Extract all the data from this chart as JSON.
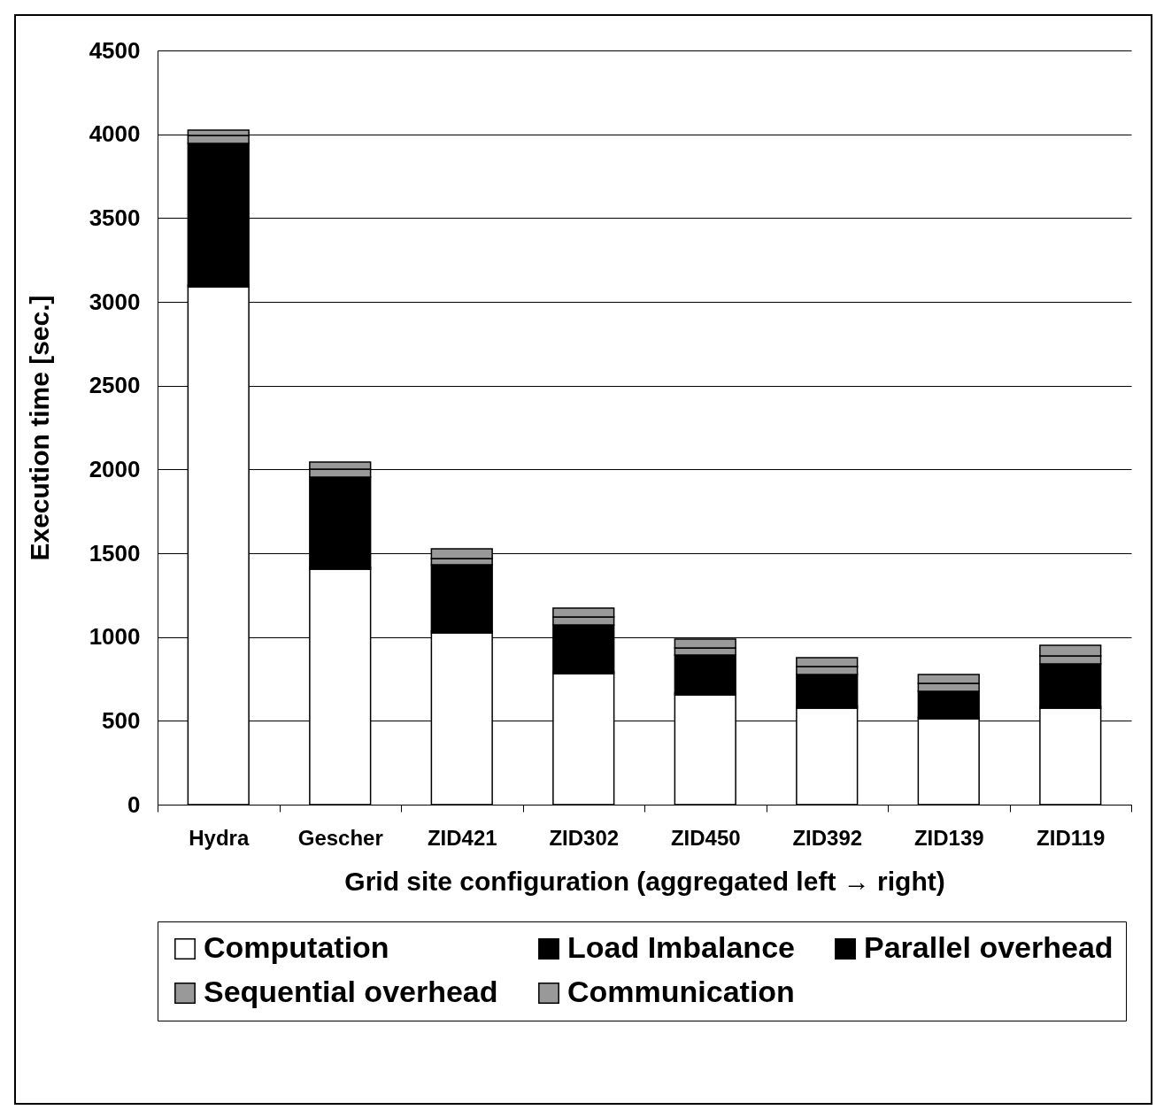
{
  "chart_data": {
    "type": "bar",
    "stacked": true,
    "xlabel": "Grid site configuration (aggregated left → right)",
    "ylabel": "Execution time [sec.]",
    "categories": [
      "Hydra",
      "Gescher",
      "ZID421",
      "ZID302",
      "ZID450",
      "ZID392",
      "ZID139",
      "ZID119"
    ],
    "series": [
      {
        "name": "Computation",
        "color": "#ffffff",
        "values": [
          3090,
          1405,
          1025,
          782,
          655,
          576,
          512,
          576
        ]
      },
      {
        "name": "Load Imbalance",
        "color": "#000000",
        "values": [
          10,
          10,
          10,
          10,
          10,
          10,
          10,
          10
        ]
      },
      {
        "name": "Parallel overhead",
        "color": "#000000",
        "values": [
          845,
          539,
          396,
          280,
          228,
          190,
          154,
          254
        ]
      },
      {
        "name": "Sequential overhead",
        "color": "#999999",
        "values": [
          48,
          48,
          37,
          48,
          42,
          48,
          48,
          47
        ]
      },
      {
        "name": "Communication",
        "color": "#999999",
        "values": [
          32,
          42,
          58,
          53,
          53,
          53,
          52,
          64
        ]
      }
    ],
    "ylim": [
      0,
      4500
    ],
    "yticks": [
      0,
      500,
      1000,
      1500,
      2000,
      2500,
      3000,
      3500,
      4000,
      4500
    ],
    "grid": "y",
    "legend": "bottom"
  }
}
